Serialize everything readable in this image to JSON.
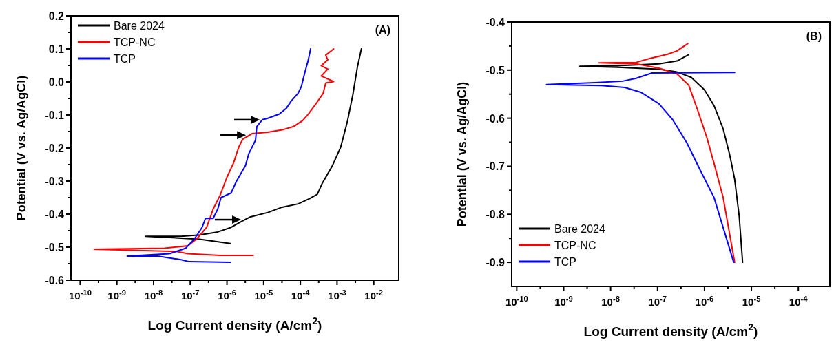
{
  "chart_data": [
    {
      "type": "line",
      "xlabel": "Log Current density (A/cm$^{2}$)",
      "ylabel": "Potential (V vs. Ag/AgCl)",
      "annotations": [
        "(A)"
      ],
      "log": "x",
      "legend": "top left",
      "line_style": "solid",
      "xlim": [
        5.6e-11,
        0.048
      ],
      "ylim": [
        -0.6,
        0.2
      ],
      "xticks": [
        {
          "value": 1e-10,
          "label": "10$^{-10}$"
        },
        {
          "value": 3.16e-10,
          "label": null
        },
        {
          "value": 1e-09,
          "label": "10$^{-9}$"
        },
        {
          "value": 3.16e-09,
          "label": null
        },
        {
          "value": 1e-08,
          "label": "10$^{-8}$"
        },
        {
          "value": 3.16e-08,
          "label": null
        },
        {
          "value": 1e-07,
          "label": "10$^{-7}$"
        },
        {
          "value": 3.16e-07,
          "label": null
        },
        {
          "value": 1e-06,
          "label": "10$^{-6}$"
        },
        {
          "value": 3.16e-06,
          "label": null
        },
        {
          "value": 1e-05,
          "label": "10$^{-5}$"
        },
        {
          "value": 3.16e-05,
          "label": null
        },
        {
          "value": 0.0001,
          "label": "10$^{-4}$"
        },
        {
          "value": 0.000316,
          "label": null
        },
        {
          "value": 0.001,
          "label": "10$^{-3}$"
        },
        {
          "value": 0.00316,
          "label": null
        },
        {
          "value": 0.01,
          "label": "10$^{-2}$"
        }
      ],
      "yticks": [
        {
          "value": -0.6,
          "label": "-0.6"
        },
        {
          "value": -0.55,
          "label": null
        },
        {
          "value": -0.5,
          "label": "-0.5"
        },
        {
          "value": -0.45,
          "label": null
        },
        {
          "value": -0.4,
          "label": "-0.4"
        },
        {
          "value": -0.35,
          "label": null
        },
        {
          "value": -0.3,
          "label": "-0.3"
        },
        {
          "value": -0.25,
          "label": null
        },
        {
          "value": -0.2,
          "label": "-0.2"
        },
        {
          "value": -0.15,
          "label": null
        },
        {
          "value": -0.1,
          "label": "-0.1"
        },
        {
          "value": -0.05,
          "label": null
        },
        {
          "value": 0,
          "label": "0.0"
        },
        {
          "value": 0.05,
          "label": null
        },
        {
          "value": 0.1,
          "label": "0.1"
        },
        {
          "value": 0.15,
          "label": null
        },
        {
          "value": 0.2,
          "label": "0.2"
        }
      ],
      "series": [
        {
          "name": "Bare 2024",
          "color": "#000000",
          "x": [
            1.24e-06,
            1.8e-07,
            6e-09,
            5.6e-08,
            1.8e-07,
            5.6e-07,
            1.3e-06,
            2.4e-06,
            4.2e-06,
            1.3e-05,
            3.2e-05,
            8.7e-05,
            0.00018,
            0.00029,
            0.00039,
            0.00075,
            0.00126,
            0.0019,
            0.0027,
            0.0036,
            0.0046
          ],
          "values": [
            -0.489,
            -0.476,
            -0.467,
            -0.467,
            -0.463,
            -0.454,
            -0.44,
            -0.423,
            -0.409,
            -0.395,
            -0.379,
            -0.369,
            -0.353,
            -0.34,
            -0.308,
            -0.253,
            -0.197,
            -0.121,
            -0.038,
            0.046,
            0.1
          ]
        },
        {
          "name": "TCP-NC",
          "color": "#ff0000",
          "x": [
            5.2e-06,
            6.5e-07,
            8.7e-08,
            4.2e-08,
            2.4e-10,
            2e-08,
            8.7e-08,
            1.5e-07,
            2.8e-07,
            4.2e-07,
            6.5e-07,
            1e-06,
            1.5e-06,
            2.1e-06,
            2.7e-06,
            4.9e-06,
            1.3e-05,
            3.2e-05,
            6.5e-05,
            0.000115,
            0.000165,
            0.000205,
            0.00027,
            0.00042,
            0.00049,
            0.00081,
            0.00037,
            0.00056,
            0.00037,
            0.00056,
            0.00049,
            0.00081
          ],
          "values": [
            -0.525,
            -0.525,
            -0.52,
            -0.513,
            -0.506,
            -0.503,
            -0.496,
            -0.475,
            -0.44,
            -0.385,
            -0.343,
            -0.288,
            -0.246,
            -0.197,
            -0.173,
            -0.156,
            -0.152,
            -0.145,
            -0.135,
            -0.117,
            -0.097,
            -0.083,
            -0.065,
            -0.034,
            -0.003,
            0.001,
            0.018,
            0.039,
            0.049,
            0.067,
            0.081,
            0.1
          ]
        },
        {
          "name": "TCP",
          "color": "#0000ff",
          "x": [
            1.24e-06,
            9.3e-08,
            5.6e-08,
            1.3e-08,
            1.9e-09,
            2.7e-08,
            7.5e-08,
            1.3e-07,
            2.1e-07,
            2.6e-07,
            4.2e-07,
            5.6e-07,
            6.9e-07,
            1.3e-06,
            1.8e-06,
            3.2e-06,
            3.9e-06,
            6e-06,
            6.5e-06,
            9.3e-06,
            1.3e-05,
            2.7e-05,
            4.2e-05,
            5.6e-05,
            8.7e-05,
            0.000107,
            0.00013,
            0.000165,
            0.00019
          ],
          "values": [
            -0.546,
            -0.544,
            -0.538,
            -0.527,
            -0.527,
            -0.52,
            -0.503,
            -0.475,
            -0.44,
            -0.413,
            -0.413,
            -0.385,
            -0.35,
            -0.336,
            -0.301,
            -0.253,
            -0.218,
            -0.176,
            -0.135,
            -0.114,
            -0.11,
            -0.097,
            -0.079,
            -0.058,
            -0.034,
            -0.013,
            0.025,
            0.067,
            0.1
          ]
        }
      ]
    },
    {
      "type": "line",
      "xlabel": "Log Current density (A/cm$^{2}$)",
      "ylabel": "Potential (V vs. Ag/AgCl)",
      "annotations": [
        "(B)"
      ],
      "log": "x",
      "legend": "bottom left",
      "line_style": "solid",
      "xlim": [
        7.8e-11,
        0.00047
      ],
      "ylim": [
        -0.95,
        -0.4
      ],
      "xticks": [
        {
          "value": 1e-10,
          "label": "10$^{-10}$"
        },
        {
          "value": 3.16e-10,
          "label": null
        },
        {
          "value": 1e-09,
          "label": "10$^{-9}$"
        },
        {
          "value": 3.16e-09,
          "label": null
        },
        {
          "value": 1e-08,
          "label": "10$^{-8}$"
        },
        {
          "value": 3.16e-08,
          "label": null
        },
        {
          "value": 1e-07,
          "label": "10$^{-7}$"
        },
        {
          "value": 3.16e-07,
          "label": null
        },
        {
          "value": 1e-06,
          "label": "10$^{-6}$"
        },
        {
          "value": 3.16e-06,
          "label": null
        },
        {
          "value": 1e-05,
          "label": "10$^{-5}$"
        },
        {
          "value": 3.16e-05,
          "label": null
        },
        {
          "value": 0.0001,
          "label": "10$^{-4}$"
        }
      ],
      "yticks": [
        {
          "value": -0.9,
          "label": "-0.9"
        },
        {
          "value": -0.85,
          "label": null
        },
        {
          "value": -0.8,
          "label": "-0.8"
        },
        {
          "value": -0.75,
          "label": null
        },
        {
          "value": -0.7,
          "label": "-0.7"
        },
        {
          "value": -0.65,
          "label": null
        },
        {
          "value": -0.6,
          "label": "-0.6"
        },
        {
          "value": -0.55,
          "label": null
        },
        {
          "value": -0.5,
          "label": "-0.5"
        },
        {
          "value": -0.45,
          "label": null
        },
        {
          "value": -0.4,
          "label": "-0.4"
        }
      ],
      "series": [
        {
          "name": "Bare 2024",
          "color": "#000000",
          "x": [
            4.6e-07,
            2.6e-07,
            1.07e-07,
            1.4e-08,
            2.2e-09,
            1.4e-08,
            1.07e-07,
            2.6e-07,
            5.2e-07,
            1e-06,
            1.6e-06,
            2.5e-06,
            3.5e-06,
            4.4e-06,
            5.5e-06,
            6.5e-06
          ],
          "values": [
            -0.468,
            -0.481,
            -0.487,
            -0.491,
            -0.492,
            -0.494,
            -0.498,
            -0.504,
            -0.515,
            -0.541,
            -0.574,
            -0.622,
            -0.679,
            -0.727,
            -0.804,
            -0.9
          ]
        },
        {
          "name": "TCP-NC",
          "color": "#ff0000",
          "x": [
            4.4e-07,
            2.6e-07,
            1.65e-07,
            6.8e-08,
            3.5e-08,
            5.7e-09,
            3.5e-08,
            1.07e-07,
            2.6e-07,
            4.6e-07,
            7.2e-07,
            1.13e-06,
            1.6e-06,
            2.5e-06,
            4.4e-06
          ],
          "values": [
            -0.445,
            -0.46,
            -0.467,
            -0.476,
            -0.484,
            -0.485,
            -0.487,
            -0.496,
            -0.508,
            -0.531,
            -0.584,
            -0.641,
            -0.694,
            -0.765,
            -0.9
          ]
        },
        {
          "name": "TCP",
          "color": "#0000ff",
          "x": [
            4.4e-06,
            7.6e-08,
            3.5e-08,
            1.8e-08,
            4.6e-09,
            4.3e-10,
            6.4e-09,
            2e-08,
            4.4e-08,
            1.07e-07,
            2.1e-07,
            4.2e-07,
            8.1e-07,
            1.6e-06,
            4.2e-06
          ],
          "values": [
            -0.505,
            -0.506,
            -0.517,
            -0.523,
            -0.526,
            -0.53,
            -0.532,
            -0.536,
            -0.546,
            -0.57,
            -0.603,
            -0.651,
            -0.708,
            -0.765,
            -0.9
          ]
        }
      ]
    }
  ]
}
